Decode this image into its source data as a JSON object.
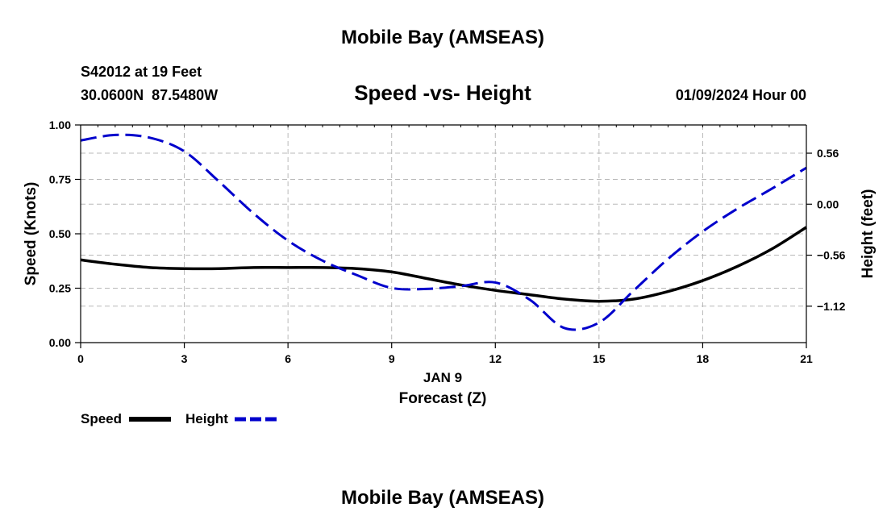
{
  "header": {
    "title": "Mobile Bay (AMSEAS)",
    "station": "S42012 at 19 Feet",
    "coords": "30.0600N  87.5480W",
    "subtitle": "Speed -vs- Height",
    "datetime": "01/09/2024 Hour 00"
  },
  "footer": {
    "title": "Mobile Bay (AMSEAS)"
  },
  "chart_data": {
    "type": "line",
    "title": "Speed -vs- Height",
    "date_label": "JAN 9",
    "xlabel": "Forecast (Z)",
    "ylabel": "Speed (Knots)",
    "y2label": "Height (feet)",
    "xlim": [
      0,
      21
    ],
    "ylim": [
      0,
      1
    ],
    "y2lim": [
      -1.52,
      0.87
    ],
    "x_ticks": [
      0,
      3,
      6,
      9,
      12,
      15,
      18,
      21
    ],
    "x_tick_labels": [
      "0",
      "3",
      "6",
      "9",
      "12",
      "15",
      "18",
      "21"
    ],
    "y_ticks": [
      0,
      0.25,
      0.5,
      0.75,
      1.0
    ],
    "y_tick_labels": [
      "0.00",
      "0.25",
      "0.50",
      "0.75",
      "1.00"
    ],
    "y2_ticks": [
      -1.12,
      -0.56,
      0.0,
      0.56
    ],
    "y2_tick_labels": [
      "−1.12",
      "−0.56",
      "0.00",
      "0.56"
    ],
    "grid": true,
    "series": [
      {
        "name": "Speed",
        "axis": "left",
        "color": "#000000",
        "style": "solid",
        "x": [
          0,
          1,
          2,
          3,
          4,
          5,
          6,
          7,
          8,
          9,
          10,
          11,
          12,
          13,
          14,
          15,
          16,
          17,
          18,
          19,
          20,
          21
        ],
        "y": [
          0.38,
          0.36,
          0.345,
          0.34,
          0.34,
          0.345,
          0.345,
          0.345,
          0.34,
          0.325,
          0.295,
          0.265,
          0.24,
          0.22,
          0.2,
          0.19,
          0.2,
          0.235,
          0.285,
          0.35,
          0.43,
          0.53
        ]
      },
      {
        "name": "Height",
        "axis": "right",
        "color": "#0000cc",
        "style": "dashed",
        "x": [
          0,
          1,
          2,
          3,
          4,
          5,
          6,
          7,
          8,
          9,
          10,
          11,
          12,
          13,
          14,
          15,
          16,
          17,
          18,
          19,
          20,
          21
        ],
        "y": [
          0.7,
          0.76,
          0.73,
          0.58,
          0.25,
          -0.1,
          -0.4,
          -0.62,
          -0.78,
          -0.92,
          -0.93,
          -0.9,
          -0.86,
          -1.05,
          -1.36,
          -1.3,
          -0.95,
          -0.6,
          -0.3,
          -0.05,
          0.17,
          0.4
        ]
      }
    ]
  }
}
